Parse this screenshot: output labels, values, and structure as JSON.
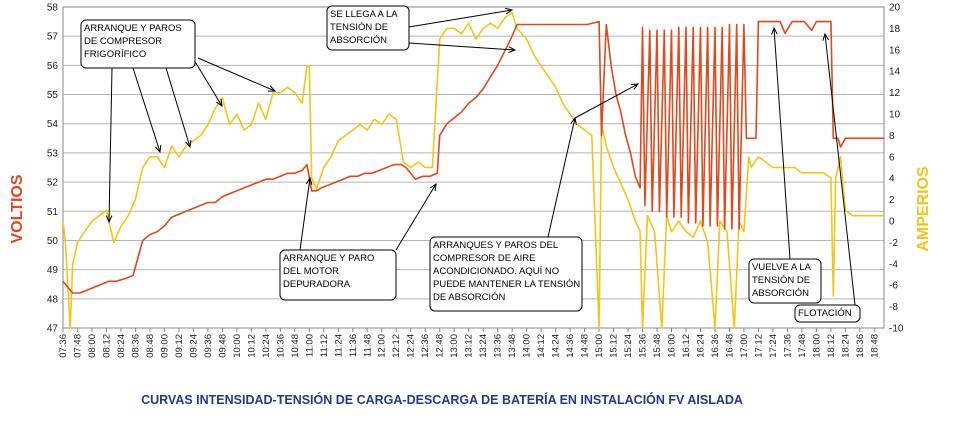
{
  "chart_data": {
    "type": "line",
    "title": "CURVAS INTENSIDAD-TENSIÓN DE CARGA-DESCARGA DE BATERÍA EN INSTALACIÓN FV AISLADA",
    "ylabel_left": "VOLTIOS",
    "ylabel_right": "AMPERIOS",
    "ylim_left": [
      47,
      58
    ],
    "ylim_right": [
      -10,
      20
    ],
    "yticks_left": [
      "47",
      "48",
      "49",
      "50",
      "51",
      "52",
      "53",
      "54",
      "55",
      "56",
      "57",
      "58"
    ],
    "yticks_right": [
      "-10",
      "-8",
      "-6",
      "-4",
      "-2",
      "0",
      "2",
      "4",
      "6",
      "8",
      "10",
      "12",
      "14",
      "16",
      "18",
      "20"
    ],
    "x_range": [
      "07:36",
      "18:56"
    ],
    "x_labels": [
      "07:36",
      "07:48",
      "08:00",
      "08:12",
      "08:24",
      "08:36",
      "08:48",
      "09:00",
      "09:12",
      "09:24",
      "09:36",
      "09:48",
      "10:00",
      "10:12",
      "10:24",
      "10:36",
      "10:48",
      "11:00",
      "11:12",
      "11:24",
      "11:36",
      "11:48",
      "12:00",
      "12:12",
      "12:24",
      "12:36",
      "12:48",
      "13:00",
      "13:12",
      "13:24",
      "13:36",
      "13:48",
      "14:00",
      "14:12",
      "14:24",
      "14:36",
      "14:48",
      "15:00",
      "15:12",
      "15:24",
      "15:36",
      "15:48",
      "16:00",
      "16:12",
      "16:24",
      "16:36",
      "16:48",
      "17:00",
      "17:12",
      "17:24",
      "17:36",
      "17:48",
      "18:00",
      "18:12",
      "18:24",
      "18:36",
      "18:48"
    ],
    "grid": true,
    "series": [
      {
        "name": "VOLTIOS",
        "axis": "left",
        "color": "#e0491e",
        "points": [
          [
            "07:36",
            48.6
          ],
          [
            "07:40",
            48.4
          ],
          [
            "07:44",
            48.2
          ],
          [
            "07:50",
            48.2
          ],
          [
            "07:56",
            48.3
          ],
          [
            "08:02",
            48.4
          ],
          [
            "08:08",
            48.5
          ],
          [
            "08:14",
            48.6
          ],
          [
            "08:20",
            48.6
          ],
          [
            "08:28",
            48.7
          ],
          [
            "08:34",
            48.8
          ],
          [
            "08:38",
            49.4
          ],
          [
            "08:42",
            50.0
          ],
          [
            "08:48",
            50.2
          ],
          [
            "08:54",
            50.3
          ],
          [
            "09:00",
            50.5
          ],
          [
            "09:06",
            50.8
          ],
          [
            "09:12",
            50.9
          ],
          [
            "09:18",
            51.0
          ],
          [
            "09:24",
            51.1
          ],
          [
            "09:30",
            51.2
          ],
          [
            "09:36",
            51.3
          ],
          [
            "09:42",
            51.3
          ],
          [
            "09:48",
            51.5
          ],
          [
            "09:54",
            51.6
          ],
          [
            "10:00",
            51.7
          ],
          [
            "10:06",
            51.8
          ],
          [
            "10:12",
            51.9
          ],
          [
            "10:18",
            52.0
          ],
          [
            "10:24",
            52.1
          ],
          [
            "10:30",
            52.1
          ],
          [
            "10:36",
            52.2
          ],
          [
            "10:42",
            52.3
          ],
          [
            "10:48",
            52.3
          ],
          [
            "10:54",
            52.4
          ],
          [
            "10:58",
            52.6
          ],
          [
            "11:02",
            51.7
          ],
          [
            "11:06",
            51.7
          ],
          [
            "11:10",
            51.8
          ],
          [
            "11:16",
            51.9
          ],
          [
            "11:22",
            52.0
          ],
          [
            "11:28",
            52.1
          ],
          [
            "11:34",
            52.2
          ],
          [
            "11:40",
            52.2
          ],
          [
            "11:46",
            52.3
          ],
          [
            "11:52",
            52.3
          ],
          [
            "11:58",
            52.4
          ],
          [
            "12:04",
            52.5
          ],
          [
            "12:10",
            52.6
          ],
          [
            "12:16",
            52.6
          ],
          [
            "12:20",
            52.5
          ],
          [
            "12:24",
            52.3
          ],
          [
            "12:28",
            52.1
          ],
          [
            "12:34",
            52.2
          ],
          [
            "12:40",
            52.2
          ],
          [
            "12:46",
            52.3
          ],
          [
            "12:48",
            53.6
          ],
          [
            "12:54",
            54.0
          ],
          [
            "13:00",
            54.2
          ],
          [
            "13:06",
            54.4
          ],
          [
            "13:12",
            54.7
          ],
          [
            "13:18",
            54.9
          ],
          [
            "13:24",
            55.2
          ],
          [
            "13:30",
            55.6
          ],
          [
            "13:36",
            56.0
          ],
          [
            "13:42",
            56.5
          ],
          [
            "13:48",
            57.0
          ],
          [
            "13:52",
            57.4
          ],
          [
            "14:00",
            57.4
          ],
          [
            "14:10",
            57.4
          ],
          [
            "14:20",
            57.4
          ],
          [
            "14:30",
            57.4
          ],
          [
            "14:40",
            57.4
          ],
          [
            "14:50",
            57.4
          ],
          [
            "15:00",
            57.5
          ],
          [
            "15:02",
            53.6
          ],
          [
            "15:06",
            57.4
          ],
          [
            "15:10",
            56.0
          ],
          [
            "15:14",
            55.0
          ],
          [
            "15:18",
            54.4
          ],
          [
            "15:22",
            53.6
          ],
          [
            "15:26",
            53.0
          ],
          [
            "15:30",
            52.2
          ],
          [
            "15:34",
            51.8
          ],
          [
            "15:36",
            57.3
          ],
          [
            "15:38",
            51.2
          ],
          [
            "15:42",
            57.2
          ],
          [
            "15:44",
            51.0
          ],
          [
            "15:48",
            57.2
          ],
          [
            "15:50",
            51.0
          ],
          [
            "15:54",
            57.2
          ],
          [
            "15:56",
            50.8
          ],
          [
            "16:00",
            57.2
          ],
          [
            "16:02",
            50.8
          ],
          [
            "16:06",
            57.3
          ],
          [
            "16:08",
            50.8
          ],
          [
            "16:12",
            57.3
          ],
          [
            "16:14",
            50.6
          ],
          [
            "16:18",
            57.3
          ],
          [
            "16:20",
            50.6
          ],
          [
            "16:24",
            57.3
          ],
          [
            "16:26",
            50.5
          ],
          [
            "16:30",
            57.3
          ],
          [
            "16:32",
            50.5
          ],
          [
            "16:36",
            57.3
          ],
          [
            "16:38",
            50.5
          ],
          [
            "16:42",
            57.3
          ],
          [
            "16:44",
            50.4
          ],
          [
            "16:48",
            57.4
          ],
          [
            "16:50",
            50.4
          ],
          [
            "16:54",
            57.4
          ],
          [
            "16:56",
            50.4
          ],
          [
            "17:00",
            57.4
          ],
          [
            "17:02",
            53.5
          ],
          [
            "17:06",
            53.5
          ],
          [
            "17:10",
            53.5
          ],
          [
            "17:12",
            57.5
          ],
          [
            "17:20",
            57.5
          ],
          [
            "17:30",
            57.5
          ],
          [
            "17:34",
            57.1
          ],
          [
            "17:40",
            57.5
          ],
          [
            "17:50",
            57.5
          ],
          [
            "17:56",
            57.2
          ],
          [
            "18:00",
            57.5
          ],
          [
            "18:06",
            57.5
          ],
          [
            "18:10",
            57.5
          ],
          [
            "18:12",
            57.5
          ],
          [
            "18:14",
            53.5
          ],
          [
            "18:18",
            53.5
          ],
          [
            "18:20",
            53.2
          ],
          [
            "18:24",
            53.5
          ],
          [
            "18:30",
            53.5
          ],
          [
            "18:40",
            53.5
          ],
          [
            "18:56",
            53.5
          ]
        ]
      },
      {
        "name": "AMPERIOS",
        "axis": "right",
        "color": "#f5c518",
        "points": [
          [
            "07:36",
            0.0
          ],
          [
            "07:38",
            -2.0
          ],
          [
            "07:40",
            -6.0
          ],
          [
            "07:42",
            -10.0
          ],
          [
            "07:44",
            -4.0
          ],
          [
            "07:48",
            -2.0
          ],
          [
            "07:54",
            -1.0
          ],
          [
            "08:00",
            0.0
          ],
          [
            "08:06",
            0.5
          ],
          [
            "08:12",
            1.0
          ],
          [
            "08:18",
            -2.0
          ],
          [
            "08:24",
            -0.5
          ],
          [
            "08:30",
            0.5
          ],
          [
            "08:36",
            2.0
          ],
          [
            "08:42",
            5.0
          ],
          [
            "08:48",
            6.0
          ],
          [
            "08:54",
            6.0
          ],
          [
            "09:00",
            5.0
          ],
          [
            "09:06",
            7.0
          ],
          [
            "09:12",
            6.0
          ],
          [
            "09:18",
            7.0
          ],
          [
            "09:24",
            7.5
          ],
          [
            "09:30",
            8.0
          ],
          [
            "09:36",
            9.0
          ],
          [
            "09:42",
            10.5
          ],
          [
            "09:48",
            11.5
          ],
          [
            "09:54",
            9.0
          ],
          [
            "10:00",
            10.0
          ],
          [
            "10:06",
            8.5
          ],
          [
            "10:12",
            9.0
          ],
          [
            "10:18",
            11.0
          ],
          [
            "10:24",
            9.5
          ],
          [
            "10:30",
            12.0
          ],
          [
            "10:36",
            12.0
          ],
          [
            "10:42",
            12.5
          ],
          [
            "10:48",
            12.0
          ],
          [
            "10:54",
            11.0
          ],
          [
            "10:58",
            14.5
          ],
          [
            "11:00",
            14.5
          ],
          [
            "11:02",
            4.0
          ],
          [
            "11:06",
            3.0
          ],
          [
            "11:12",
            5.0
          ],
          [
            "11:18",
            6.0
          ],
          [
            "11:24",
            7.5
          ],
          [
            "11:30",
            8.0
          ],
          [
            "11:36",
            8.5
          ],
          [
            "11:42",
            9.0
          ],
          [
            "11:48",
            8.5
          ],
          [
            "11:54",
            9.5
          ],
          [
            "12:00",
            9.0
          ],
          [
            "12:06",
            10.0
          ],
          [
            "12:12",
            9.5
          ],
          [
            "12:18",
            5.5
          ],
          [
            "12:24",
            5.0
          ],
          [
            "12:30",
            5.5
          ],
          [
            "12:36",
            5.0
          ],
          [
            "12:42",
            5.0
          ],
          [
            "12:48",
            17.0
          ],
          [
            "12:54",
            18.0
          ],
          [
            "13:00",
            18.0
          ],
          [
            "13:06",
            17.5
          ],
          [
            "13:12",
            18.5
          ],
          [
            "13:18",
            17.0
          ],
          [
            "13:24",
            18.0
          ],
          [
            "13:30",
            18.5
          ],
          [
            "13:36",
            18.0
          ],
          [
            "13:42",
            19.0
          ],
          [
            "13:48",
            19.5
          ],
          [
            "13:52",
            18.0
          ],
          [
            "14:00",
            17.0
          ],
          [
            "14:06",
            15.5
          ],
          [
            "14:12",
            14.5
          ],
          [
            "14:18",
            13.5
          ],
          [
            "14:24",
            12.5
          ],
          [
            "14:30",
            11.0
          ],
          [
            "14:36",
            10.0
          ],
          [
            "14:42",
            9.0
          ],
          [
            "14:48",
            8.5
          ],
          [
            "14:54",
            8.0
          ],
          [
            "15:00",
            -10.0
          ],
          [
            "15:02",
            9.0
          ],
          [
            "15:06",
            7.0
          ],
          [
            "15:12",
            5.0
          ],
          [
            "15:18",
            3.5
          ],
          [
            "15:24",
            2.0
          ],
          [
            "15:30",
            0.0
          ],
          [
            "15:34",
            -1.0
          ],
          [
            "15:36",
            -10.0
          ],
          [
            "15:40",
            0.5
          ],
          [
            "15:46",
            -1.0
          ],
          [
            "15:52",
            -10.0
          ],
          [
            "15:56",
            0.5
          ],
          [
            "16:00",
            -1.0
          ],
          [
            "16:06",
            0.0
          ],
          [
            "16:12",
            -1.0
          ],
          [
            "16:18",
            -1.5
          ],
          [
            "16:24",
            0.0
          ],
          [
            "16:30",
            -2.0
          ],
          [
            "16:36",
            -10.0
          ],
          [
            "16:40",
            0.0
          ],
          [
            "16:46",
            -1.0
          ],
          [
            "16:52",
            -10.0
          ],
          [
            "16:56",
            0.0
          ],
          [
            "17:00",
            -1.0
          ],
          [
            "17:04",
            6.0
          ],
          [
            "17:06",
            5.0
          ],
          [
            "17:12",
            6.0
          ],
          [
            "17:18",
            5.5
          ],
          [
            "17:24",
            5.0
          ],
          [
            "17:30",
            5.0
          ],
          [
            "17:36",
            5.0
          ],
          [
            "17:42",
            5.0
          ],
          [
            "17:48",
            4.5
          ],
          [
            "17:54",
            4.5
          ],
          [
            "18:00",
            4.5
          ],
          [
            "18:06",
            4.5
          ],
          [
            "18:12",
            4.0
          ],
          [
            "18:14",
            -7.0
          ],
          [
            "18:16",
            4.0
          ],
          [
            "18:20",
            6.0
          ],
          [
            "18:24",
            1.0
          ],
          [
            "18:30",
            0.5
          ],
          [
            "18:40",
            0.5
          ],
          [
            "18:56",
            0.5
          ]
        ]
      }
    ],
    "annotations": [
      {
        "lines": [
          "ARRANQUE Y PAROS",
          "DE COMPRESOR",
          "FRIGORÍFICO"
        ]
      },
      {
        "lines": [
          "SE LLEGA A LA",
          "TENSIÓN DE",
          "ABSORCIÓN"
        ]
      },
      {
        "lines": [
          "ARRANQUE Y PARO",
          "DEL MOTOR",
          "DEPURADORA"
        ]
      },
      {
        "lines": [
          "ARRANQUES Y PAROS DEL",
          "COMPRESOR DE AIRE",
          "ACONDICIONADO. AQUÍ NO",
          "PUEDE MANTENER LA TENSIÓN",
          "DE ABSORCIÓN"
        ]
      },
      {
        "lines": [
          "VUELVE A LA",
          "TENSIÓN DE",
          "ABSORCIÓN"
        ]
      },
      {
        "lines": [
          "FLOTACIÓN"
        ]
      }
    ]
  }
}
